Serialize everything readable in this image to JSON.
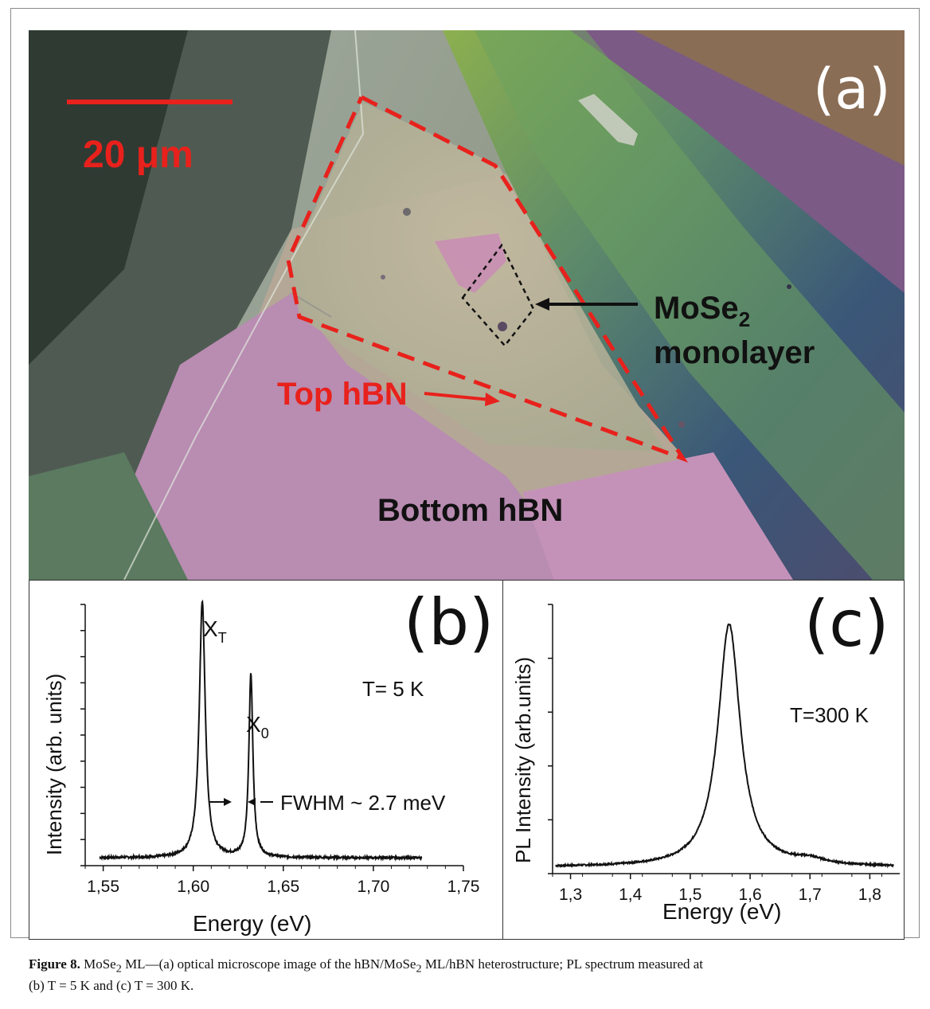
{
  "panel_a": {
    "panel_label": "(a)",
    "scale_bar_label": "20 μm",
    "arrow_label_line1": "MoSe",
    "arrow_label_sub": "2",
    "arrow_label_line2": "monolayer",
    "top_label": "Top hBN",
    "bottom_label": "Bottom hBN",
    "colors": {
      "annotation_red": "#e8211c",
      "annotation_black": "#111111"
    }
  },
  "chart_data": [
    {
      "panel": "(b)",
      "type": "line",
      "xlabel": "Energy (eV)",
      "ylabel": "Intensity (arb. units)",
      "xlim": [
        1.54,
        1.75
      ],
      "ylim": [
        0,
        1
      ],
      "xticks": [
        "1,55",
        "1,60",
        "1,65",
        "1,70",
        "1,75"
      ],
      "annotations": {
        "peak1": "X",
        "peak1_sub": "T",
        "peak2": "X",
        "peak2_sub": "0",
        "temperature": "T= 5 K",
        "fwhm": "FWHM ~ 2.7 meV"
      },
      "series": [
        {
          "peaks": [
            {
              "center": 1.605,
              "height": 0.98,
              "fwhm": 0.004
            },
            {
              "center": 1.632,
              "height": 0.7,
              "fwhm": 0.0027
            }
          ],
          "baseline": 0.01,
          "x_range": [
            1.548,
            1.727
          ]
        }
      ]
    },
    {
      "panel": "(c)",
      "type": "line",
      "xlabel": "Energy (eV)",
      "ylabel": "PL Intensity (arb.units)",
      "xlim": [
        1.27,
        1.85
      ],
      "ylim": [
        0,
        1
      ],
      "xticks": [
        "1,3",
        "1,4",
        "1,5",
        "1,6",
        "1,7",
        "1,8"
      ],
      "annotations": {
        "temperature": "T=300 K"
      },
      "series": [
        {
          "peaks": [
            {
              "center": 1.565,
              "height": 0.95,
              "fwhm": 0.045
            },
            {
              "center": 1.7,
              "height": 0.02,
              "fwhm": 0.06
            }
          ],
          "baseline": 0.015,
          "x_range": [
            1.275,
            1.84
          ]
        }
      ]
    }
  ],
  "caption": {
    "label": "Figure 8.",
    "text_1": " MoSe",
    "sub_1": "2",
    "text_2": " ML—(a) optical microscope image of the hBN/MoSe",
    "sub_2": "2",
    "text_3": " ML/hBN heterostructure; PL spectrum measured at",
    "line2": "(b) T = 5 K and (c) T = 300 K."
  }
}
